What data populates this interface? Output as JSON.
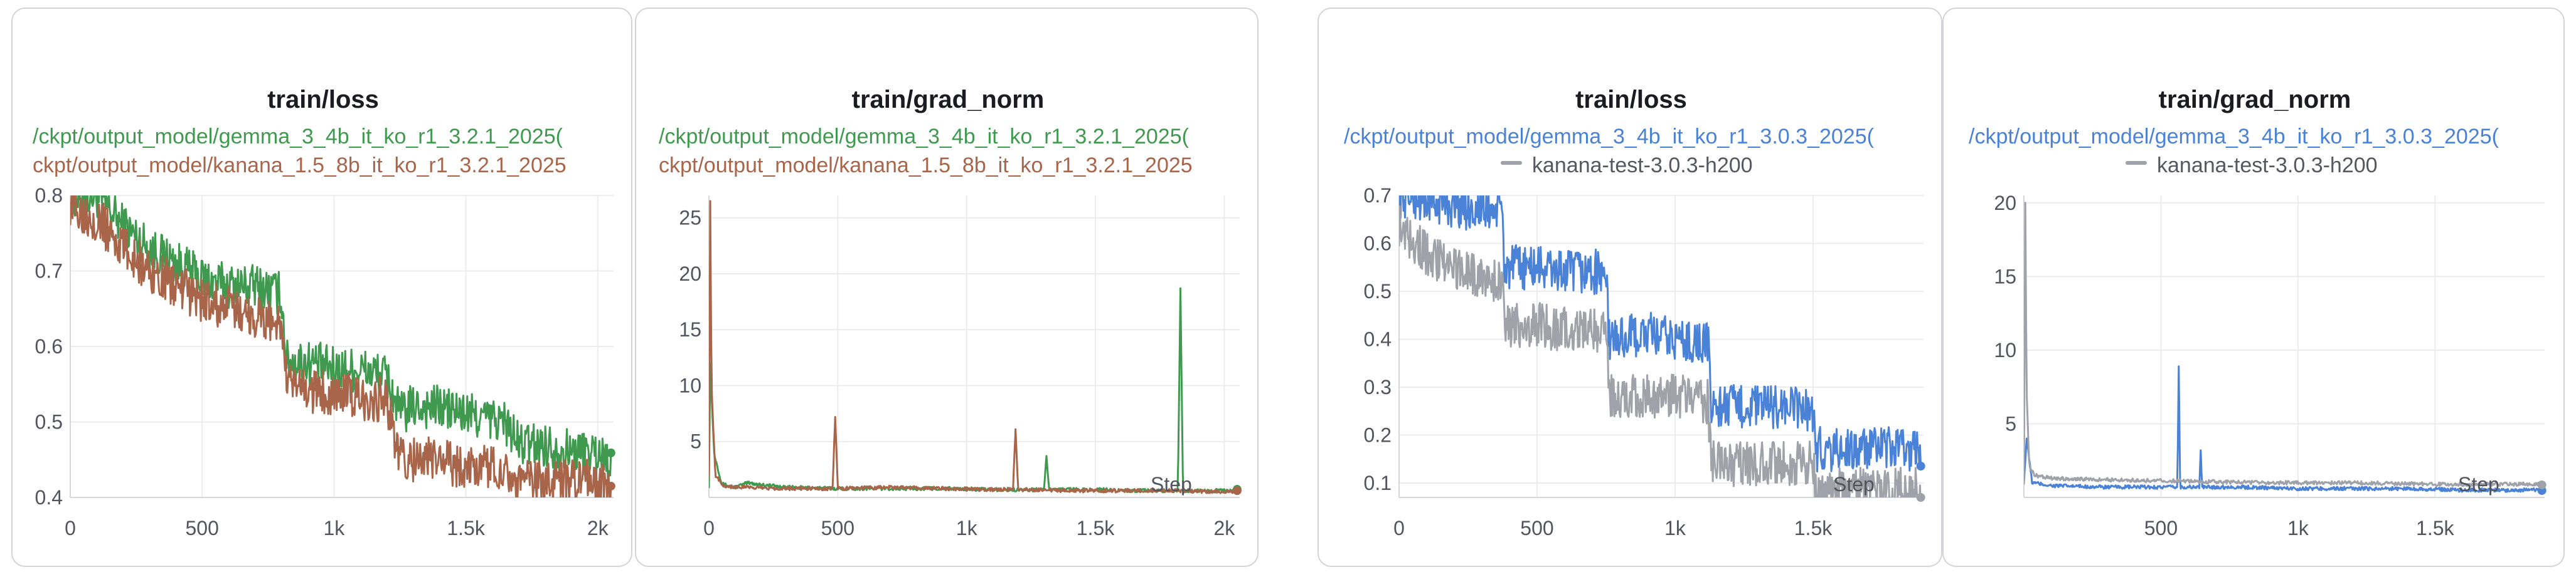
{
  "panels": [
    {
      "title": "train/loss",
      "legend": [
        {
          "text": "/ckpt/output_model/gemma_3_4b_it_ko_r1_3.2.1_2025(",
          "color": "#3f9a4f",
          "swatch": false
        },
        {
          "text": "ckpt/output_model/kanana_1.5_8b_it_ko_r1_3.2.1_2025",
          "color": "#a8654a",
          "swatch": false
        }
      ],
      "step_label": ""
    },
    {
      "title": "train/grad_norm",
      "legend": [
        {
          "text": "/ckpt/output_model/gemma_3_4b_it_ko_r1_3.2.1_2025(",
          "color": "#3f9a4f",
          "swatch": false
        },
        {
          "text": "ckpt/output_model/kanana_1.5_8b_it_ko_r1_3.2.1_2025",
          "color": "#a8654a",
          "swatch": false
        }
      ],
      "step_label": "Step"
    },
    {
      "title": "train/loss",
      "legend": [
        {
          "text": "/ckpt/output_model/gemma_3_4b_it_ko_r1_3.0.3_2025(",
          "color": "#4a82d8",
          "swatch": false
        },
        {
          "text": "kanana-test-3.0.3-h200",
          "color": "#55585f",
          "swatch": true,
          "swatch_color": "#9fa2a8"
        }
      ],
      "step_label": "Step"
    },
    {
      "title": "train/grad_norm",
      "legend": [
        {
          "text": "/ckpt/output_model/gemma_3_4b_it_ko_r1_3.0.3_2025(",
          "color": "#4a82d8",
          "swatch": false
        },
        {
          "text": "kanana-test-3.0.3-h200",
          "color": "#55585f",
          "swatch": true,
          "swatch_color": "#9fa2a8"
        }
      ],
      "step_label": "Step"
    }
  ],
  "chart_data": [
    {
      "type": "line",
      "title": "train/loss",
      "xlabel": "",
      "ylabel": "",
      "xlim": [
        0,
        2060
      ],
      "ylim": [
        0.4,
        0.8
      ],
      "xticks": [
        0,
        500,
        1000,
        1500,
        2000
      ],
      "xtick_labels": [
        "0",
        "500",
        "1k",
        "1.5k",
        "2k"
      ],
      "yticks": [
        0.4,
        0.5,
        0.6,
        0.7,
        0.8
      ],
      "ytick_labels": [
        "0.4",
        "0.5",
        "0.6",
        "0.7",
        "0.8"
      ],
      "grid": true,
      "series": [
        {
          "name": "/ckpt/output_model/gemma_3_4b_it_ko_r1_3.2.1_2025(",
          "color": "#3f9a4f",
          "x": [
            0,
            100,
            200,
            300,
            400,
            500,
            600,
            700,
            800,
            820,
            900,
            1000,
            1100,
            1200,
            1250,
            1300,
            1400,
            1500,
            1650,
            1700,
            1800,
            1900,
            2000,
            2050
          ],
          "y": [
            0.8,
            0.8,
            0.76,
            0.73,
            0.71,
            0.69,
            0.68,
            0.68,
            0.67,
            0.58,
            0.58,
            0.57,
            0.57,
            0.56,
            0.51,
            0.52,
            0.52,
            0.51,
            0.5,
            0.47,
            0.47,
            0.46,
            0.46,
            0.45
          ]
        },
        {
          "name": "ckpt/output_model/kanana_1.5_8b_it_ko_r1_3.2.1_2025",
          "color": "#a8654a",
          "x": [
            0,
            100,
            200,
            300,
            400,
            500,
            600,
            700,
            800,
            820,
            900,
            1000,
            1100,
            1200,
            1250,
            1300,
            1400,
            1500,
            1650,
            1700,
            1800,
            1900,
            2000,
            2050
          ],
          "y": [
            0.79,
            0.77,
            0.73,
            0.7,
            0.68,
            0.66,
            0.65,
            0.64,
            0.63,
            0.55,
            0.54,
            0.54,
            0.53,
            0.53,
            0.45,
            0.45,
            0.45,
            0.44,
            0.44,
            0.42,
            0.42,
            0.42,
            0.42,
            0.41
          ]
        }
      ]
    },
    {
      "type": "line",
      "title": "train/grad_norm",
      "xlabel": "Step",
      "ylabel": "",
      "xlim": [
        0,
        2060
      ],
      "ylim": [
        0,
        27
      ],
      "xticks": [
        0,
        500,
        1000,
        1500,
        2000
      ],
      "xtick_labels": [
        "0",
        "500",
        "1k",
        "1.5k",
        "2k"
      ],
      "yticks": [
        5,
        10,
        15,
        20,
        25
      ],
      "ytick_labels": [
        "5",
        "10",
        "15",
        "20",
        "25"
      ],
      "grid": true,
      "series": [
        {
          "name": "/ckpt/output_model/gemma_3_4b_it_ko_r1_3.2.1_2025(",
          "color": "#3f9a4f",
          "x": [
            0,
            5,
            20,
            50,
            100,
            150,
            300,
            500,
            700,
            900,
            1100,
            1300,
            1310,
            1320,
            1500,
            1700,
            1820,
            1830,
            1840,
            1900,
            2050
          ],
          "y": [
            1,
            12,
            4,
            1.2,
            0.9,
            1.3,
            0.9,
            0.8,
            0.8,
            0.8,
            0.7,
            0.7,
            3.7,
            0.7,
            0.7,
            0.6,
            0.6,
            18.7,
            0.6,
            0.6,
            0.6
          ]
        },
        {
          "name": "ckpt/output_model/kanana_1.5_8b_it_ko_r1_3.2.1_2025",
          "color": "#a8654a",
          "x": [
            0,
            5,
            10,
            25,
            60,
            150,
            300,
            480,
            490,
            500,
            700,
            900,
            1100,
            1180,
            1190,
            1200,
            1400,
            1600,
            1800,
            2050
          ],
          "y": [
            2,
            26.5,
            10,
            2,
            1.0,
            0.9,
            0.8,
            0.8,
            7.2,
            0.8,
            0.9,
            0.8,
            0.7,
            0.7,
            6.1,
            0.7,
            0.6,
            0.6,
            0.6,
            0.5
          ]
        }
      ]
    },
    {
      "type": "line",
      "title": "train/loss",
      "xlabel": "Step",
      "ylabel": "",
      "xlim": [
        0,
        1900
      ],
      "ylim": [
        0.07,
        0.7
      ],
      "xticks": [
        0,
        500,
        1000,
        1500
      ],
      "xtick_labels": [
        "0",
        "500",
        "1k",
        "1.5k"
      ],
      "yticks": [
        0.1,
        0.2,
        0.3,
        0.4,
        0.5,
        0.6,
        0.7
      ],
      "ytick_labels": [
        "0.1",
        "0.2",
        "0.3",
        "0.4",
        "0.5",
        "0.6",
        "0.7"
      ],
      "grid": true,
      "series": [
        {
          "name": "/ckpt/output_model/gemma_3_4b_it_ko_r1_3.0.3_2025(",
          "color": "#4a82d8",
          "x": [
            0,
            100,
            200,
            300,
            375,
            380,
            500,
            600,
            750,
            760,
            900,
            1000,
            1120,
            1130,
            1300,
            1400,
            1500,
            1510,
            1600,
            1700,
            1800,
            1890
          ],
          "y": [
            0.7,
            0.69,
            0.68,
            0.67,
            0.67,
            0.55,
            0.55,
            0.54,
            0.54,
            0.4,
            0.41,
            0.4,
            0.39,
            0.26,
            0.26,
            0.26,
            0.25,
            0.17,
            0.17,
            0.17,
            0.17,
            0.17
          ]
        },
        {
          "name": "kanana-test-3.0.3-h200",
          "color": "#9fa2a8",
          "x": [
            0,
            100,
            200,
            300,
            375,
            380,
            500,
            600,
            750,
            760,
            900,
            1000,
            1120,
            1130,
            1300,
            1400,
            1500,
            1510,
            1600,
            1700,
            1800,
            1890
          ],
          "y": [
            0.64,
            0.58,
            0.55,
            0.53,
            0.52,
            0.43,
            0.43,
            0.42,
            0.42,
            0.28,
            0.28,
            0.28,
            0.27,
            0.14,
            0.14,
            0.14,
            0.14,
            0.085,
            0.085,
            0.085,
            0.085,
            0.085
          ]
        }
      ]
    },
    {
      "type": "line",
      "title": "train/grad_norm",
      "xlabel": "Step",
      "ylabel": "",
      "xlim": [
        0,
        1900
      ],
      "ylim": [
        0,
        20.5
      ],
      "xticks": [
        500,
        1000,
        1500
      ],
      "xtick_labels": [
        "500",
        "1k",
        "1.5k"
      ],
      "yticks": [
        5,
        10,
        15,
        20
      ],
      "ytick_labels": [
        "5",
        "10",
        "15",
        "20"
      ],
      "grid": true,
      "series": [
        {
          "name": "/ckpt/output_model/gemma_3_4b_it_ko_r1_3.0.3_2025(",
          "color": "#4a82d8",
          "x": [
            0,
            10,
            30,
            100,
            300,
            560,
            565,
            570,
            640,
            645,
            650,
            800,
            1000,
            1200,
            1400,
            1600,
            1890
          ],
          "y": [
            1.0,
            4.0,
            1.0,
            0.8,
            0.7,
            0.7,
            8.9,
            0.7,
            0.7,
            3.2,
            0.7,
            0.7,
            0.6,
            0.6,
            0.6,
            0.5,
            0.5
          ]
        },
        {
          "name": "kanana-test-3.0.3-h200",
          "color": "#9fa2a8",
          "x": [
            0,
            5,
            10,
            20,
            40,
            100,
            300,
            600,
            900,
            1200,
            1500,
            1890
          ],
          "y": [
            1.0,
            20.0,
            7.0,
            2.0,
            1.5,
            1.3,
            1.2,
            1.1,
            1.0,
            1.0,
            0.9,
            0.9
          ]
        }
      ]
    }
  ]
}
